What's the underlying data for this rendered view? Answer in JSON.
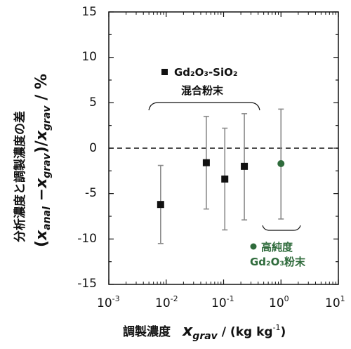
{
  "chart_data": {
    "type": "scatter",
    "x_scale": "log",
    "xlim": [
      0.001,
      10
    ],
    "ylim": [
      -15,
      15
    ],
    "x_ticks": [
      {
        "base": "10",
        "exp": "-3"
      },
      {
        "base": "10",
        "exp": "-2"
      },
      {
        "base": "10",
        "exp": "-1"
      },
      {
        "base": "10",
        "exp": "0"
      },
      {
        "base": "10",
        "exp": "1"
      }
    ],
    "y_ticks": [
      "15",
      "10",
      "5",
      "0",
      "-5",
      "-10",
      "-15"
    ],
    "y_tick_values": [
      15,
      10,
      5,
      0,
      -5,
      -10,
      -15
    ],
    "x_tick_values": [
      0.001,
      0.01,
      0.1,
      1,
      10
    ],
    "reference_line": {
      "y": 0,
      "style": "dashed"
    },
    "xlabel": {
      "prefix": "調製濃度",
      "var": "x",
      "sub": "grav",
      "unit": "/ (kg kg",
      "unit_sup": "-1",
      "unit_end": ")"
    },
    "ylabel": {
      "line1": "分析濃度と調製濃度の差",
      "line2_open": "(",
      "var1": "x",
      "sub1": "anal",
      "minus": " −",
      "var2": "x",
      "sub2": "grav",
      "close": ")/",
      "var3": "x",
      "sub3": "grav",
      "unit": " / %"
    },
    "series": [
      {
        "marker": "square",
        "color": "#111111",
        "points": [
          {
            "x": 0.008,
            "y": -6.2,
            "err_low": -10.5,
            "err_high": -1.9
          },
          {
            "x": 0.05,
            "y": -1.6,
            "err_low": -6.7,
            "err_high": 3.5
          },
          {
            "x": 0.105,
            "y": -3.4,
            "err_low": -9.0,
            "err_high": 2.2
          },
          {
            "x": 0.23,
            "y": -2.0,
            "err_low": -7.9,
            "err_high": 3.8
          }
        ]
      },
      {
        "marker": "circle",
        "color": "#2f6b3c",
        "points": [
          {
            "x": 1.0,
            "y": -1.7,
            "err_low": -7.8,
            "err_high": 4.3
          }
        ]
      }
    ],
    "annotations": {
      "group1_line1": "Gd₂O₃-SiO₂",
      "group1_line2": "混合粉末",
      "group2_line1": "高純度",
      "group2_line2": "Gd₂O₃粉末"
    }
  }
}
